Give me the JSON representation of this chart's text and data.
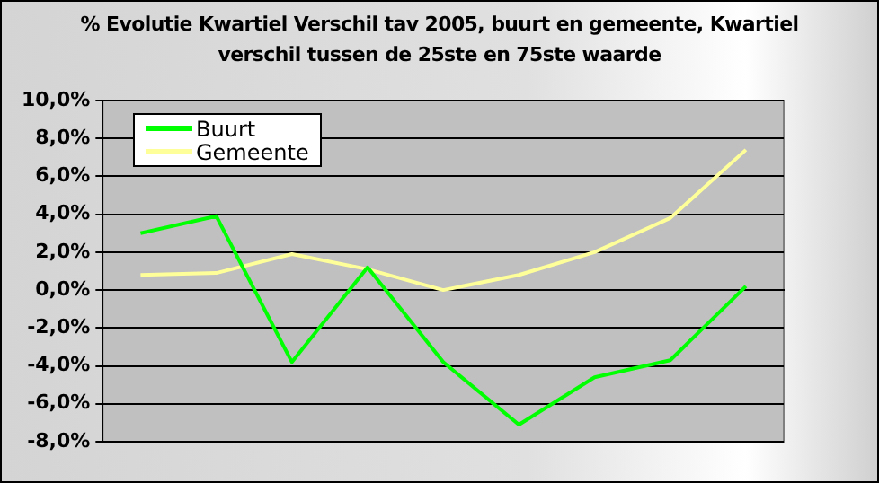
{
  "chart_data": {
    "type": "line",
    "title": "% Evolutie Kwartiel Verschil tav 2005, buurt en gemeente, Kwartiel verschil tussen de 25ste en 75ste waarde",
    "categories": [
      null,
      null,
      null,
      null,
      null,
      null,
      null,
      null,
      null
    ],
    "series": [
      {
        "name": "Buurt",
        "color": "#00ff00",
        "values": [
          3.0,
          3.9,
          -3.8,
          1.2,
          -3.8,
          -7.1,
          -4.6,
          -3.7,
          0.2
        ]
      },
      {
        "name": "Gemeente",
        "color": "#ffff99",
        "values": [
          0.8,
          0.9,
          1.9,
          1.1,
          0.0,
          0.8,
          2.0,
          3.8,
          7.4
        ]
      }
    ],
    "ylim": [
      -8,
      10
    ],
    "yticks": [
      {
        "value": -8,
        "label": "-8,0%"
      },
      {
        "value": -6,
        "label": "-6,0%"
      },
      {
        "value": -4,
        "label": "-4,0%"
      },
      {
        "value": -2,
        "label": "-2,0%"
      },
      {
        "value": 0,
        "label": "0,0%"
      },
      {
        "value": 2,
        "label": "2,0%"
      },
      {
        "value": 4,
        "label": "4,0%"
      },
      {
        "value": 6,
        "label": "6,0%"
      },
      {
        "value": 8,
        "label": "8,0%"
      },
      {
        "value": 10,
        "label": "10,0%"
      }
    ],
    "grid": "y",
    "legend": "top left",
    "marker": "none",
    "line_style": "solid"
  }
}
